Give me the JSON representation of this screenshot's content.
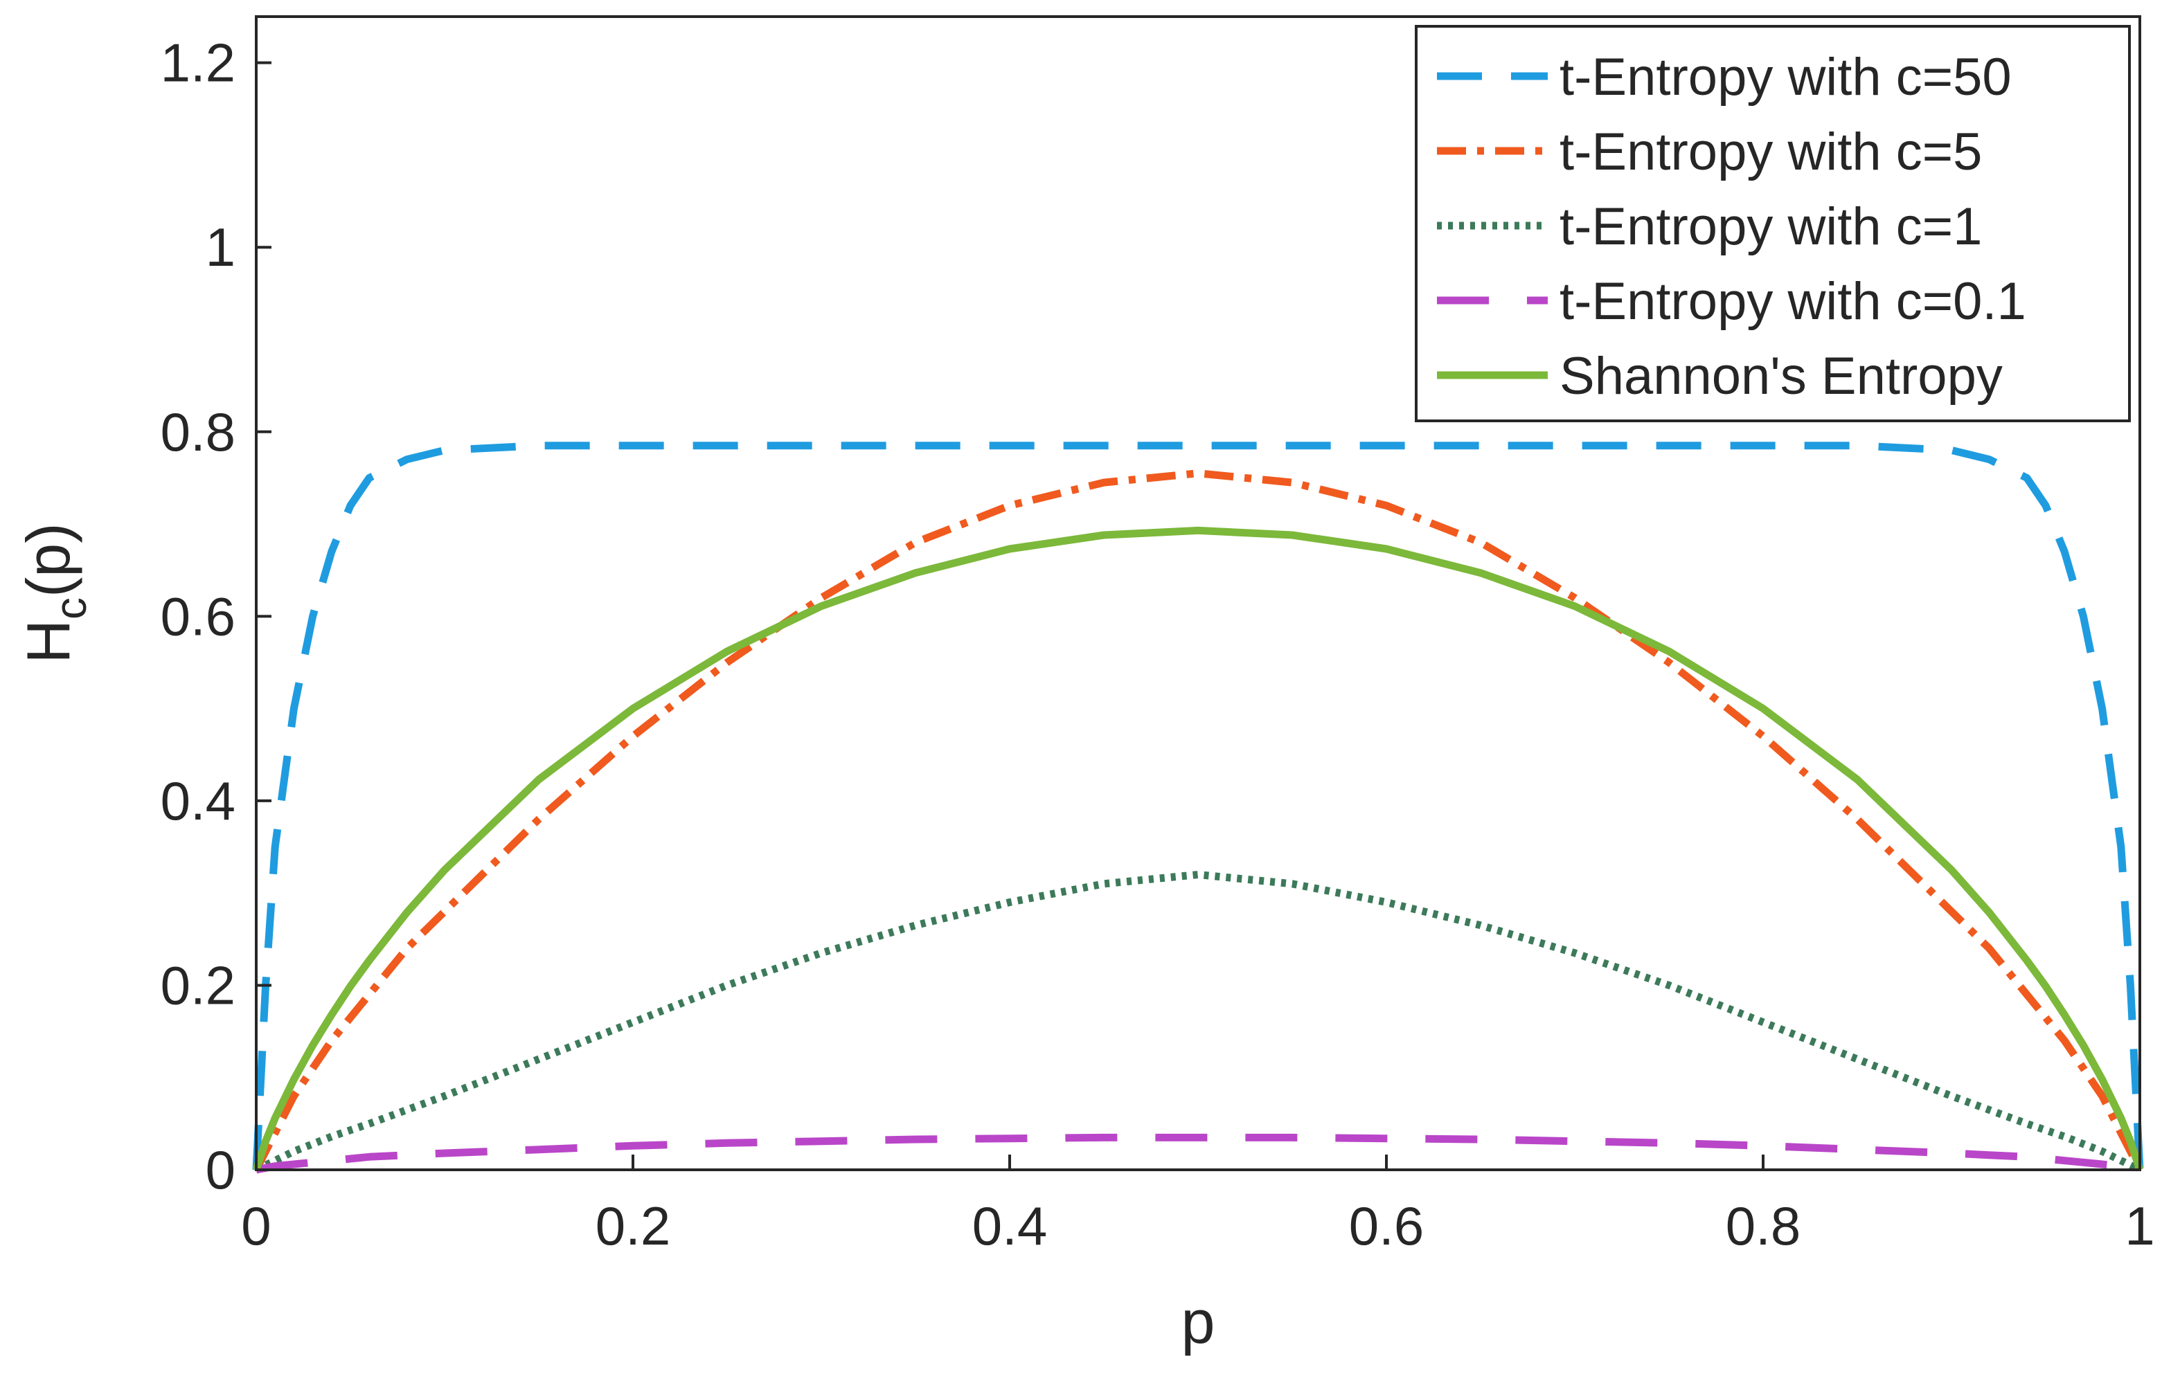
{
  "chart_data": {
    "type": "line",
    "title": "",
    "xlabel": "p",
    "ylabel": "H",
    "ylabel_subscript": "c",
    "ylabel_suffix": "(p)",
    "xlim": [
      0,
      1
    ],
    "ylim": [
      0,
      1.25
    ],
    "grid": false,
    "legend_position": "top-right",
    "x_ticks": [
      "0",
      "0.2",
      "0.4",
      "0.6",
      "0.8",
      "1"
    ],
    "y_ticks": [
      "0",
      "0.2",
      "0.4",
      "0.6",
      "0.8",
      "1",
      "1.2"
    ],
    "x": [
      0,
      0.005,
      0.01,
      0.02,
      0.03,
      0.04,
      0.05,
      0.06,
      0.08,
      0.1,
      0.15,
      0.2,
      0.25,
      0.3,
      0.35,
      0.4,
      0.45,
      0.5,
      0.55,
      0.6,
      0.65,
      0.7,
      0.75,
      0.8,
      0.85,
      0.9,
      0.92,
      0.94,
      0.95,
      0.96,
      0.97,
      0.98,
      0.99,
      0.995,
      1
    ],
    "series": [
      {
        "name": "t-Entropy with c=50",
        "color": "#1f9ce0",
        "dash": "65 42",
        "values": [
          0,
          0.2,
          0.35,
          0.5,
          0.6,
          0.67,
          0.72,
          0.75,
          0.77,
          0.78,
          0.785,
          0.785,
          0.785,
          0.785,
          0.785,
          0.785,
          0.785,
          0.785,
          0.785,
          0.785,
          0.785,
          0.785,
          0.785,
          0.785,
          0.785,
          0.78,
          0.77,
          0.75,
          0.72,
          0.67,
          0.6,
          0.5,
          0.35,
          0.2,
          0
        ]
      },
      {
        "name": "t-Entropy with c=5",
        "color": "#f05a1e",
        "dash": "42 16 10 16",
        "values": [
          0,
          0.02,
          0.04,
          0.08,
          0.11,
          0.14,
          0.165,
          0.19,
          0.24,
          0.28,
          0.38,
          0.47,
          0.55,
          0.62,
          0.68,
          0.72,
          0.745,
          0.755,
          0.745,
          0.72,
          0.68,
          0.62,
          0.55,
          0.47,
          0.38,
          0.28,
          0.24,
          0.19,
          0.165,
          0.14,
          0.11,
          0.08,
          0.04,
          0.02,
          0
        ]
      },
      {
        "name": "t-Entropy with c=1",
        "color": "#3c7a5a",
        "dash": "7 9",
        "values": [
          0,
          0.005,
          0.01,
          0.02,
          0.028,
          0.036,
          0.043,
          0.05,
          0.065,
          0.08,
          0.12,
          0.16,
          0.2,
          0.235,
          0.265,
          0.29,
          0.31,
          0.32,
          0.31,
          0.29,
          0.265,
          0.235,
          0.2,
          0.16,
          0.12,
          0.08,
          0.065,
          0.05,
          0.043,
          0.036,
          0.028,
          0.02,
          0.01,
          0.005,
          0
        ]
      },
      {
        "name": "t-Entropy with c=0.1",
        "color": "#b946c8",
        "dash": "75 55",
        "values": [
          0,
          0.002,
          0.004,
          0.006,
          0.008,
          0.01,
          0.012,
          0.014,
          0.016,
          0.018,
          0.022,
          0.026,
          0.029,
          0.031,
          0.033,
          0.034,
          0.035,
          0.035,
          0.035,
          0.034,
          0.033,
          0.031,
          0.029,
          0.026,
          0.022,
          0.018,
          0.016,
          0.014,
          0.012,
          0.01,
          0.008,
          0.006,
          0.004,
          0.002,
          0
        ]
      },
      {
        "name": "Shannon's Entropy",
        "color": "#7cb83a",
        "dash": "",
        "values": [
          0,
          0.031,
          0.056,
          0.098,
          0.135,
          0.168,
          0.199,
          0.227,
          0.279,
          0.325,
          0.423,
          0.5,
          0.562,
          0.611,
          0.647,
          0.673,
          0.688,
          0.693,
          0.688,
          0.673,
          0.647,
          0.611,
          0.562,
          0.5,
          0.423,
          0.325,
          0.279,
          0.227,
          0.199,
          0.168,
          0.135,
          0.098,
          0.056,
          0.031,
          0
        ]
      }
    ]
  }
}
